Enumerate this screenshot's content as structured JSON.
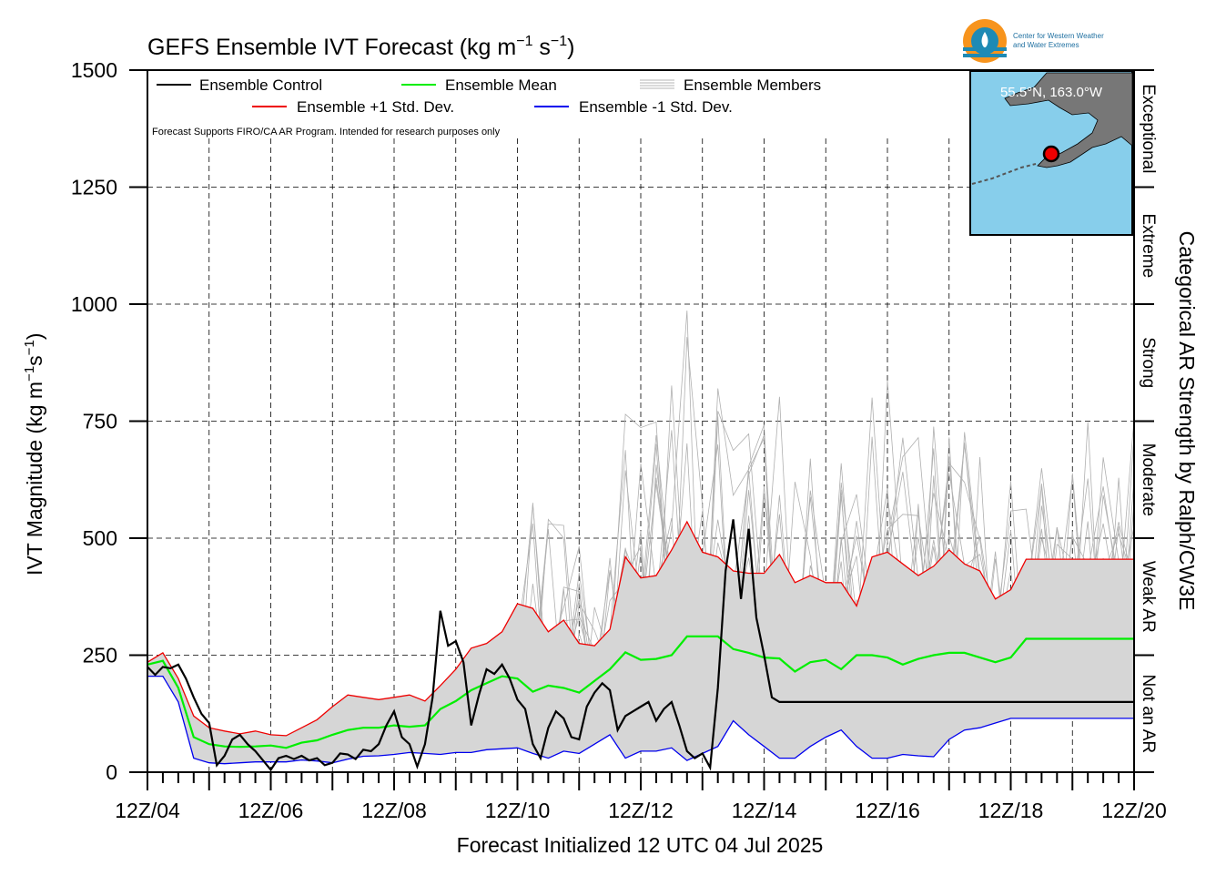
{
  "chart_data": {
    "type": "line",
    "title": "GEFS Ensemble IVT Forecast (kg m",
    "title_exp1": "−1",
    "title_mid": " s",
    "title_exp2": "−1",
    "title_end": ")",
    "ylabel": {
      "pre": "IVT Magnitude (kg m",
      "e1": "−1",
      "mid": "s",
      "e2": "−1",
      "post": ")"
    },
    "xlabel": "Forecast Initialized 12 UTC 04 Jul 2025",
    "right_label": "Categorical AR Strength by Ralph/CW3E",
    "note": "Forecast Supports FIRO/CA AR Program. Intended for research purposes only",
    "ylim": [
      0,
      1500
    ],
    "yticks": [
      0,
      250,
      500,
      750,
      1000,
      1250,
      1500
    ],
    "xlim": [
      0,
      16
    ],
    "xticks": [
      {
        "x": 0,
        "label": "12Z/04"
      },
      {
        "x": 2,
        "label": "12Z/06"
      },
      {
        "x": 4,
        "label": "12Z/08"
      },
      {
        "x": 6,
        "label": "12Z/10"
      },
      {
        "x": 8,
        "label": "12Z/12"
      },
      {
        "x": 10,
        "label": "12Z/14"
      },
      {
        "x": 12,
        "label": "12Z/16"
      },
      {
        "x": 14,
        "label": "12Z/18"
      },
      {
        "x": 16,
        "label": "12Z/20"
      }
    ],
    "categories": [
      {
        "label": "Not an AR",
        "from": 0,
        "to": 250
      },
      {
        "label": "Weak AR",
        "from": 250,
        "to": 500
      },
      {
        "label": "Moderate",
        "from": 500,
        "to": 750
      },
      {
        "label": "Strong",
        "from": 750,
        "to": 1000
      },
      {
        "label": "Extreme",
        "from": 1000,
        "to": 1250
      },
      {
        "label": "Exceptional",
        "from": 1250,
        "to": 1500
      }
    ],
    "legend": [
      {
        "label": "Ensemble Control",
        "color": "#000000"
      },
      {
        "label": "Ensemble Mean",
        "color": "#00ee00"
      },
      {
        "label": "Ensemble Members",
        "color": "#b4b4b4"
      },
      {
        "label": "Ensemble +1 Std. Dev.",
        "color": "#ee0000"
      },
      {
        "label": "Ensemble -1 Std. Dev.",
        "color": "#0000ee"
      }
    ],
    "grid": true,
    "legend_position": "top-left",
    "inset": {
      "location_label": "55.5°N, 163.0°W",
      "logo_text": [
        "Center for Western Weather",
        "and Water Extremes"
      ]
    },
    "series": [
      {
        "name": "Ensemble +1 Std. Dev.",
        "color": "#ee0000",
        "x": [
          0,
          0.25,
          0.5,
          0.75,
          1,
          1.25,
          1.5,
          1.75,
          2,
          2.25,
          2.5,
          2.75,
          3,
          3.25,
          3.5,
          3.75,
          4,
          4.25,
          4.5,
          4.75,
          5,
          5.25,
          5.5,
          5.75,
          6,
          6.25,
          6.5,
          6.75,
          7,
          7.25,
          7.5,
          7.75,
          8,
          8.25,
          8.5,
          8.75,
          9,
          9.25,
          9.5,
          9.75,
          10,
          10.25,
          10.5,
          10.75,
          11,
          11.25,
          11.5,
          11.75,
          12,
          12.25,
          12.5,
          12.75,
          13,
          13.25,
          13.5,
          13.75,
          14,
          14.25,
          14.5,
          14.75,
          15,
          15.25,
          15.5,
          15.75,
          16
        ],
        "values": [
          235,
          255,
          200,
          120,
          95,
          88,
          82,
          88,
          80,
          78,
          95,
          112,
          140,
          165,
          160,
          155,
          160,
          165,
          152,
          185,
          220,
          265,
          275,
          300,
          360,
          350,
          300,
          325,
          275,
          270,
          305,
          460,
          415,
          420,
          475,
          535,
          470,
          460,
          430,
          425,
          425,
          465,
          405,
          420,
          405,
          405,
          355,
          460,
          470,
          445,
          420,
          440,
          475,
          445,
          430,
          370,
          390,
          455,
          455,
          455,
          455,
          455,
          455,
          455,
          455
        ]
      },
      {
        "name": "Ensemble Mean",
        "color": "#00ee00",
        "x": [
          0,
          0.25,
          0.5,
          0.75,
          1,
          1.25,
          1.5,
          1.75,
          2,
          2.25,
          2.5,
          2.75,
          3,
          3.25,
          3.5,
          3.75,
          4,
          4.25,
          4.5,
          4.75,
          5,
          5.25,
          5.5,
          5.75,
          6,
          6.25,
          6.5,
          6.75,
          7,
          7.25,
          7.5,
          7.75,
          8,
          8.25,
          8.5,
          8.75,
          9,
          9.25,
          9.5,
          9.75,
          10,
          10.25,
          10.5,
          10.75,
          11,
          11.25,
          11.5,
          11.75,
          12,
          12.25,
          12.5,
          12.75,
          13,
          13.25,
          13.5,
          13.75,
          14,
          14.25,
          14.5,
          14.75,
          15,
          15.25,
          15.5,
          15.75,
          16
        ],
        "values": [
          230,
          238,
          180,
          75,
          60,
          55,
          54,
          55,
          57,
          52,
          63,
          68,
          80,
          90,
          95,
          95,
          100,
          97,
          100,
          135,
          152,
          175,
          190,
          205,
          200,
          172,
          185,
          180,
          170,
          195,
          220,
          256,
          240,
          242,
          250,
          290,
          290,
          290,
          263,
          255,
          245,
          243,
          215,
          235,
          240,
          220,
          250,
          250,
          245,
          230,
          242,
          250,
          255,
          255,
          245,
          235,
          245,
          285,
          285,
          285,
          285,
          285,
          285,
          285,
          285
        ]
      },
      {
        "name": "Ensemble -1 Std. Dev.",
        "color": "#0000ee",
        "x": [
          0,
          0.25,
          0.5,
          0.75,
          1,
          1.25,
          1.5,
          1.75,
          2,
          2.25,
          2.5,
          2.75,
          3,
          3.25,
          3.5,
          3.75,
          4,
          4.25,
          4.5,
          4.75,
          5,
          5.25,
          5.5,
          5.75,
          6,
          6.25,
          6.5,
          6.75,
          7,
          7.25,
          7.5,
          7.75,
          8,
          8.25,
          8.5,
          8.75,
          9,
          9.25,
          9.5,
          9.75,
          10,
          10.25,
          10.5,
          10.75,
          11,
          11.25,
          11.5,
          11.75,
          12,
          12.25,
          12.5,
          12.75,
          13,
          13.25,
          13.5,
          13.75,
          14,
          14.25,
          14.5,
          14.75,
          15,
          15.25,
          15.5,
          15.75,
          16
        ],
        "values": [
          205,
          205,
          150,
          30,
          20,
          18,
          20,
          22,
          22,
          22,
          26,
          24,
          20,
          28,
          34,
          35,
          38,
          42,
          40,
          38,
          42,
          42,
          48,
          50,
          52,
          40,
          30,
          45,
          40,
          60,
          80,
          30,
          45,
          45,
          52,
          25,
          40,
          55,
          110,
          80,
          55,
          30,
          30,
          55,
          75,
          90,
          55,
          30,
          30,
          38,
          35,
          33,
          70,
          90,
          95,
          105,
          115,
          115,
          115,
          115,
          115,
          115,
          115,
          115,
          115
        ]
      },
      {
        "name": "Ensemble Control",
        "color": "#000000",
        "x": [
          0,
          0.125,
          0.25,
          0.375,
          0.5,
          0.625,
          0.75,
          0.875,
          1,
          1.125,
          1.25,
          1.375,
          1.5,
          1.625,
          1.75,
          1.875,
          2,
          2.125,
          2.25,
          2.375,
          2.5,
          2.625,
          2.75,
          2.875,
          3,
          3.125,
          3.25,
          3.375,
          3.5,
          3.625,
          3.75,
          3.875,
          4,
          4.125,
          4.25,
          4.375,
          4.5,
          4.625,
          4.75,
          4.875,
          5,
          5.125,
          5.25,
          5.375,
          5.5,
          5.625,
          5.75,
          5.875,
          6,
          6.125,
          6.25,
          6.375,
          6.5,
          6.625,
          6.75,
          6.875,
          7,
          7.125,
          7.25,
          7.375,
          7.5,
          7.625,
          7.75,
          7.875,
          8,
          8.125,
          8.25,
          8.375,
          8.5,
          8.625,
          8.75,
          8.875,
          9,
          9.125,
          9.25,
          9.375,
          9.5,
          9.625,
          9.75,
          9.875,
          10,
          10.125,
          10.25,
          10.375,
          10.5,
          10.625,
          10.75,
          10.875,
          11,
          11.125,
          11.25,
          11.375,
          11.5,
          11.625,
          11.75,
          11.875,
          12,
          12.125,
          12.25,
          12.375,
          12.5,
          12.625,
          12.75,
          12.875,
          13,
          13.125,
          13.25,
          13.375,
          13.5,
          13.625,
          13.75,
          13.875,
          14,
          14.125,
          14.25,
          14.375,
          14.5,
          14.625,
          14.75,
          14.875,
          15,
          15.125,
          15.25,
          15.375,
          15.5,
          15.625,
          15.75,
          15.875,
          16
        ],
        "values": [
          225,
          208,
          225,
          222,
          230,
          200,
          160,
          125,
          105,
          15,
          35,
          70,
          80,
          60,
          45,
          25,
          5,
          30,
          35,
          28,
          35,
          25,
          30,
          15,
          20,
          40,
          38,
          28,
          48,
          45,
          60,
          100,
          130,
          75,
          60,
          12,
          60,
          160,
          345,
          270,
          280,
          235,
          100,
          165,
          220,
          210,
          230,
          200,
          155,
          135,
          60,
          30,
          95,
          130,
          115,
          75,
          70,
          140,
          170,
          190,
          175,
          90,
          120,
          130,
          140,
          150,
          110,
          135,
          150,
          100,
          45,
          30,
          40,
          10,
          180,
          430,
          540,
          370,
          520,
          330,
          250,
          160,
          150,
          150,
          150,
          150,
          150,
          150,
          150,
          150,
          150,
          150,
          150,
          150,
          150,
          150,
          150,
          150,
          150,
          150,
          150,
          150,
          150,
          150,
          150,
          150,
          150,
          150,
          150,
          150,
          150,
          150,
          150,
          150,
          150,
          150,
          150,
          150,
          150,
          150,
          150,
          150,
          150,
          150,
          150,
          150,
          150,
          150,
          150
        ]
      }
    ]
  }
}
